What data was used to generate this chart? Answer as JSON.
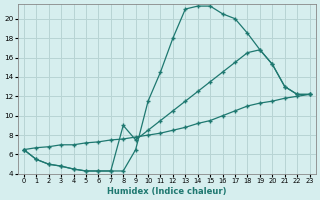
{
  "xlabel": "Humidex (Indice chaleur)",
  "background_color": "#d6eeee",
  "line_color": "#1e7870",
  "grid_color": "#b8d4d4",
  "xlim": [
    -0.5,
    23.5
  ],
  "ylim": [
    4,
    21.5
  ],
  "yticks": [
    4,
    6,
    8,
    10,
    12,
    14,
    16,
    18,
    20
  ],
  "xticks": [
    0,
    1,
    2,
    3,
    4,
    5,
    6,
    7,
    8,
    9,
    10,
    11,
    12,
    13,
    14,
    15,
    16,
    17,
    18,
    19,
    20,
    21,
    22,
    23
  ],
  "line1_x": [
    0,
    1,
    2,
    3,
    4,
    5,
    6,
    7,
    8,
    9,
    10,
    11,
    12,
    13,
    14,
    15,
    16,
    17,
    18,
    19,
    20,
    21,
    22,
    23
  ],
  "line1_y": [
    6.5,
    5.5,
    5.0,
    4.8,
    4.5,
    4.3,
    4.3,
    4.3,
    4.3,
    6.5,
    11.5,
    14.5,
    18.0,
    21.0,
    21.3,
    21.3,
    20.5,
    20.0,
    18.5,
    16.8,
    15.3,
    13.0,
    12.2,
    12.2
  ],
  "line2_x": [
    0,
    1,
    2,
    3,
    4,
    5,
    6,
    7,
    8,
    9,
    10,
    11,
    12,
    13,
    14,
    15,
    16,
    17,
    18,
    19,
    20,
    21,
    22,
    23
  ],
  "line2_y": [
    6.5,
    5.5,
    5.0,
    4.8,
    4.5,
    4.3,
    4.3,
    4.3,
    9.0,
    7.5,
    8.5,
    9.5,
    10.5,
    11.5,
    12.5,
    13.5,
    14.5,
    15.5,
    16.5,
    16.8,
    15.3,
    13.0,
    12.2,
    12.2
  ],
  "line3_x": [
    0,
    1,
    2,
    3,
    4,
    5,
    6,
    7,
    8,
    9,
    10,
    11,
    12,
    13,
    14,
    15,
    16,
    17,
    18,
    19,
    20,
    21,
    22,
    23
  ],
  "line3_y": [
    6.5,
    6.7,
    6.8,
    7.0,
    7.0,
    7.2,
    7.3,
    7.5,
    7.6,
    7.8,
    8.0,
    8.2,
    8.5,
    8.8,
    9.2,
    9.5,
    10.0,
    10.5,
    11.0,
    11.3,
    11.5,
    11.8,
    12.0,
    12.2
  ]
}
